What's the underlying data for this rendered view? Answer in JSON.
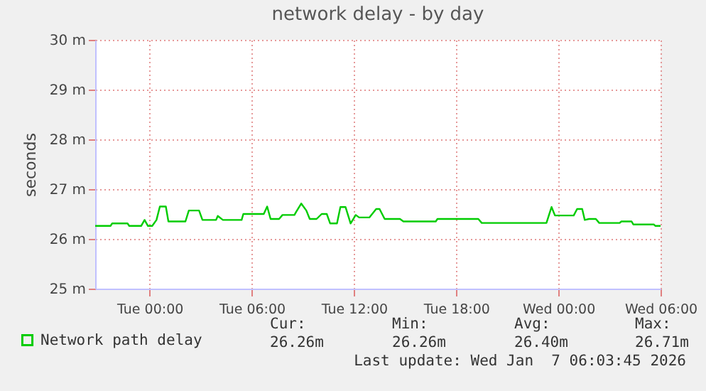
{
  "chart_data": {
    "type": "step",
    "title": "network delay - by day",
    "ylabel": "seconds",
    "x": [
      "2026-01-05T20:48",
      "2026-01-05T21:42",
      "2026-01-05T21:48",
      "2026-01-05T22:42",
      "2026-01-05T22:48",
      "2026-01-05T23:30",
      "2026-01-05T23:42",
      "2026-01-05T23:54",
      "2026-01-06T00:09",
      "2026-01-06T00:24",
      "2026-01-06T00:36",
      "2026-01-06T00:57",
      "2026-01-06T01:06",
      "2026-01-06T02:06",
      "2026-01-06T02:18",
      "2026-01-06T02:54",
      "2026-01-06T03:06",
      "2026-01-06T03:54",
      "2026-01-06T04:00",
      "2026-01-06T04:18",
      "2026-01-06T05:24",
      "2026-01-06T05:30",
      "2026-01-06T06:42",
      "2026-01-06T06:54",
      "2026-01-06T07:06",
      "2026-01-06T07:36",
      "2026-01-06T07:48",
      "2026-01-06T08:30",
      "2026-01-06T08:36",
      "2026-01-06T08:54",
      "2026-01-06T09:12",
      "2026-01-06T09:24",
      "2026-01-06T09:48",
      "2026-01-06T10:06",
      "2026-01-06T10:24",
      "2026-01-06T10:36",
      "2026-01-06T11:00",
      "2026-01-06T11:12",
      "2026-01-06T11:30",
      "2026-01-06T11:48",
      "2026-01-06T12:06",
      "2026-01-06T12:18",
      "2026-01-06T12:54",
      "2026-01-06T13:18",
      "2026-01-06T13:30",
      "2026-01-06T13:48",
      "2026-01-06T14:42",
      "2026-01-06T14:54",
      "2026-01-06T16:48",
      "2026-01-06T16:54",
      "2026-01-06T19:18",
      "2026-01-06T19:30",
      "2026-01-06T23:18",
      "2026-01-06T23:36",
      "2026-01-06T23:48",
      "2026-01-07T00:54",
      "2026-01-07T01:06",
      "2026-01-07T01:24",
      "2026-01-07T01:33",
      "2026-01-07T01:48",
      "2026-01-07T02:12",
      "2026-01-07T02:24",
      "2026-01-07T03:36",
      "2026-01-07T03:42",
      "2026-01-07T04:18",
      "2026-01-07T04:24",
      "2026-01-07T05:36",
      "2026-01-07T05:42",
      "2026-01-07T06:00"
    ],
    "series": [
      {
        "name": "Network path delay",
        "color": "#00cc00",
        "values": [
          26.26,
          26.26,
          26.31,
          26.31,
          26.26,
          26.26,
          26.38,
          26.26,
          26.26,
          26.38,
          26.65,
          26.65,
          26.35,
          26.35,
          26.57,
          26.57,
          26.38,
          26.38,
          26.46,
          26.38,
          26.38,
          26.5,
          26.5,
          26.65,
          26.4,
          26.4,
          26.48,
          26.48,
          26.54,
          26.71,
          26.57,
          26.4,
          26.4,
          26.5,
          26.5,
          26.31,
          26.31,
          26.64,
          26.64,
          26.31,
          26.48,
          26.43,
          26.43,
          26.6,
          26.6,
          26.4,
          26.4,
          26.35,
          26.35,
          26.4,
          26.4,
          26.32,
          26.32,
          26.64,
          26.47,
          26.47,
          26.6,
          26.6,
          26.38,
          26.4,
          26.4,
          26.32,
          26.32,
          26.35,
          26.35,
          26.29,
          26.29,
          26.26,
          26.26
        ]
      }
    ],
    "xlim": [
      "2026-01-05T20:48",
      "2026-01-07T06:00"
    ],
    "xticks": [
      {
        "value": "2026-01-06T00:00",
        "label": "Tue 00:00"
      },
      {
        "value": "2026-01-06T06:00",
        "label": "Tue 06:00"
      },
      {
        "value": "2026-01-06T12:00",
        "label": "Tue 12:00"
      },
      {
        "value": "2026-01-06T18:00",
        "label": "Tue 18:00"
      },
      {
        "value": "2026-01-07T00:00",
        "label": "Wed 00:00"
      },
      {
        "value": "2026-01-07T06:00",
        "label": "Wed 06:00"
      }
    ],
    "ylim": [
      25,
      30
    ],
    "yticks": [
      {
        "value": 25,
        "label": "25 m"
      },
      {
        "value": 26,
        "label": "26 m"
      },
      {
        "value": 27,
        "label": "27 m"
      },
      {
        "value": 28,
        "label": "28 m"
      },
      {
        "value": 29,
        "label": "29 m"
      },
      {
        "value": 30,
        "label": "30 m"
      }
    ],
    "grid": true,
    "legend": "bottom left",
    "annotations": [
      "Cur:",
      "26.26m",
      "Min:",
      "26.26m",
      "Avg:",
      "26.40m",
      "Max:",
      "26.71m",
      "Last update: Wed Jan  7 06:03:45 2026"
    ]
  }
}
